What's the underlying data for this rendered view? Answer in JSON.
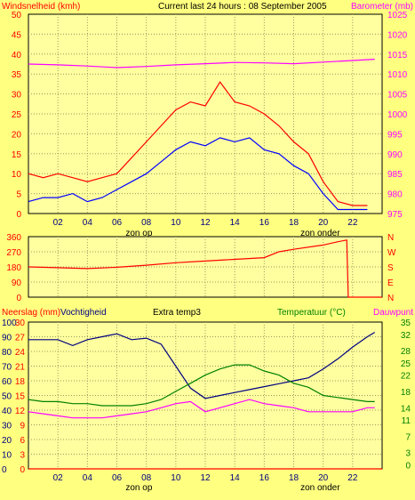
{
  "header": {
    "left": "Windsnelheid (kmh)",
    "center": "Current last 24 hours : 08 September 2005",
    "right": "Barometer (mb)"
  },
  "colors": {
    "background": "#ffff80",
    "plot_bg": "#ffffa0",
    "grid": "#9c9c5c",
    "wind": "#0000ff",
    "gust": "#ff0000",
    "barometer": "#ff00ff",
    "winddir": "#ff0000",
    "humidity": "#000080",
    "temperature": "#008000",
    "dewpoint": "#ff00ff",
    "rain": "#ff0000",
    "red_label": "#ff0000",
    "magenta_label": "#ff00ff",
    "green_label": "#008000",
    "blue_label": "#000080"
  },
  "chart_data": [
    {
      "id": "wind-barometer",
      "type": "line",
      "ylabel_left": "Windsnelheid (kmh)",
      "ylabel_right": "Barometer (mb)",
      "ylim_left": [
        0,
        50
      ],
      "ylim_right": [
        975,
        1025
      ],
      "yticks_left": [
        0,
        5,
        10,
        15,
        20,
        25,
        30,
        35,
        40,
        45,
        50
      ],
      "yticks_right": [
        975,
        980,
        985,
        990,
        995,
        1000,
        1005,
        1010,
        1015,
        1020,
        1025
      ],
      "xticks": [
        "02",
        "04",
        "06",
        "08",
        "10",
        "12",
        "14",
        "16",
        "18",
        "20",
        "22"
      ],
      "annotations": [
        "zon op",
        "zon onder"
      ],
      "grid": true,
      "series": [
        {
          "name": "wind",
          "color": "#0000ff",
          "x": [
            0,
            1,
            2,
            3,
            4,
            5,
            6,
            7,
            8,
            9,
            10,
            11,
            12,
            13,
            14,
            15,
            16,
            17,
            18,
            19,
            20,
            21,
            22,
            23
          ],
          "values": [
            3,
            4,
            4,
            5,
            3,
            4,
            6,
            8,
            10,
            13,
            16,
            18,
            17,
            19,
            18,
            19,
            16,
            15,
            12,
            10,
            5,
            1,
            1,
            1
          ]
        },
        {
          "name": "gust",
          "color": "#ff0000",
          "x": [
            0,
            1,
            2,
            3,
            4,
            5,
            6,
            7,
            8,
            9,
            10,
            11,
            12,
            13,
            14,
            15,
            16,
            17,
            18,
            19,
            20,
            21,
            22,
            23
          ],
          "values": [
            10,
            9,
            10,
            9,
            8,
            9,
            10,
            14,
            18,
            22,
            26,
            28,
            27,
            33,
            28,
            27,
            25,
            22,
            18,
            15,
            8,
            3,
            2,
            2
          ]
        },
        {
          "name": "barometer",
          "color": "#ff00ff",
          "x": [
            0,
            2,
            4,
            6,
            8,
            10,
            12,
            14,
            16,
            18,
            20,
            22,
            23.5
          ],
          "values": [
            1012.5,
            1012.3,
            1012,
            1011.6,
            1011.9,
            1012.3,
            1012.6,
            1012.9,
            1012.8,
            1012.6,
            1013,
            1013.4,
            1013.7
          ]
        }
      ]
    },
    {
      "id": "wind-direction",
      "type": "line",
      "ylim": [
        0,
        360
      ],
      "yticks_left": [
        0,
        90,
        180,
        270,
        360
      ],
      "yticks_right": [
        "N",
        "E",
        "S",
        "W",
        "N"
      ],
      "grid": true,
      "series": [
        {
          "name": "winddir",
          "color": "#ff0000",
          "x": [
            0,
            2,
            4,
            6,
            8,
            10,
            12,
            14,
            16,
            17,
            18,
            20,
            21,
            21.6,
            21.7,
            24
          ],
          "values": [
            180,
            175,
            170,
            178,
            190,
            205,
            215,
            225,
            235,
            270,
            285,
            310,
            330,
            340,
            0,
            0
          ]
        }
      ]
    },
    {
      "id": "humidity-temp",
      "type": "line",
      "ylabel_left": "Neerslag (mm)",
      "ylabel_left2": "Vochtigheid",
      "label_center": "Extra temp3",
      "ylabel_right": "Temperatuur (°C)",
      "ylabel_right2": "Dauwpunt",
      "ylim_left": [
        0,
        100
      ],
      "yticks_left": [
        0,
        10,
        20,
        30,
        40,
        50,
        60,
        70,
        80,
        90,
        100
      ],
      "yticks_left2": [
        0,
        3,
        6,
        9,
        12,
        15,
        18,
        21,
        24,
        27,
        30
      ],
      "ylim_right": [
        -1,
        35
      ],
      "yticks_right": [
        0,
        3,
        7,
        11,
        14,
        18,
        22,
        25,
        28,
        32,
        35
      ],
      "xticks": [
        "02",
        "04",
        "06",
        "08",
        "10",
        "12",
        "14",
        "16",
        "18",
        "20",
        "22"
      ],
      "annotations": [
        "zon op",
        "zon onder"
      ],
      "grid": true,
      "series": [
        {
          "name": "humidity",
          "color": "#000080",
          "x": [
            0,
            0.5,
            2,
            3,
            4,
            5,
            6,
            7,
            8,
            9,
            10,
            11,
            12,
            13,
            14,
            15,
            16,
            17,
            18,
            19,
            20,
            21,
            22,
            23,
            23.5
          ],
          "values": [
            88,
            88,
            88,
            84,
            88,
            90,
            92,
            88,
            89,
            85,
            70,
            55,
            48,
            50,
            52,
            54,
            56,
            58,
            60,
            62,
            68,
            75,
            83,
            90,
            93
          ]
        },
        {
          "name": "temperature",
          "color": "#008000",
          "x": [
            0,
            1,
            2,
            3,
            4,
            5,
            6,
            7,
            8,
            9,
            10,
            11,
            12,
            13,
            14,
            15,
            16,
            17,
            18,
            19,
            20,
            21,
            22,
            23,
            23.5
          ],
          "values": [
            16,
            15.5,
            15.5,
            15,
            15,
            14.5,
            14.5,
            14.5,
            15,
            16,
            18,
            20,
            22,
            23.5,
            24.5,
            24.5,
            23,
            22,
            20,
            19,
            17,
            16.5,
            16,
            15.5,
            15.5
          ]
        },
        {
          "name": "dewpoint",
          "color": "#ff00ff",
          "x": [
            0,
            1,
            2,
            3,
            4,
            5,
            6,
            7,
            8,
            9,
            10,
            11,
            12,
            13,
            14,
            15,
            16,
            17,
            18,
            19,
            20,
            21,
            22,
            23,
            23.5
          ],
          "values": [
            13,
            12.5,
            12,
            11.5,
            11.5,
            11.5,
            12,
            12.5,
            13,
            14,
            15,
            15.5,
            13,
            14,
            15,
            16,
            15,
            14.5,
            14,
            13,
            13,
            13,
            13,
            14,
            14
          ]
        },
        {
          "name": "rain",
          "color": "#ff0000",
          "x": [
            0,
            24
          ],
          "values": [
            0,
            0
          ]
        }
      ]
    }
  ]
}
